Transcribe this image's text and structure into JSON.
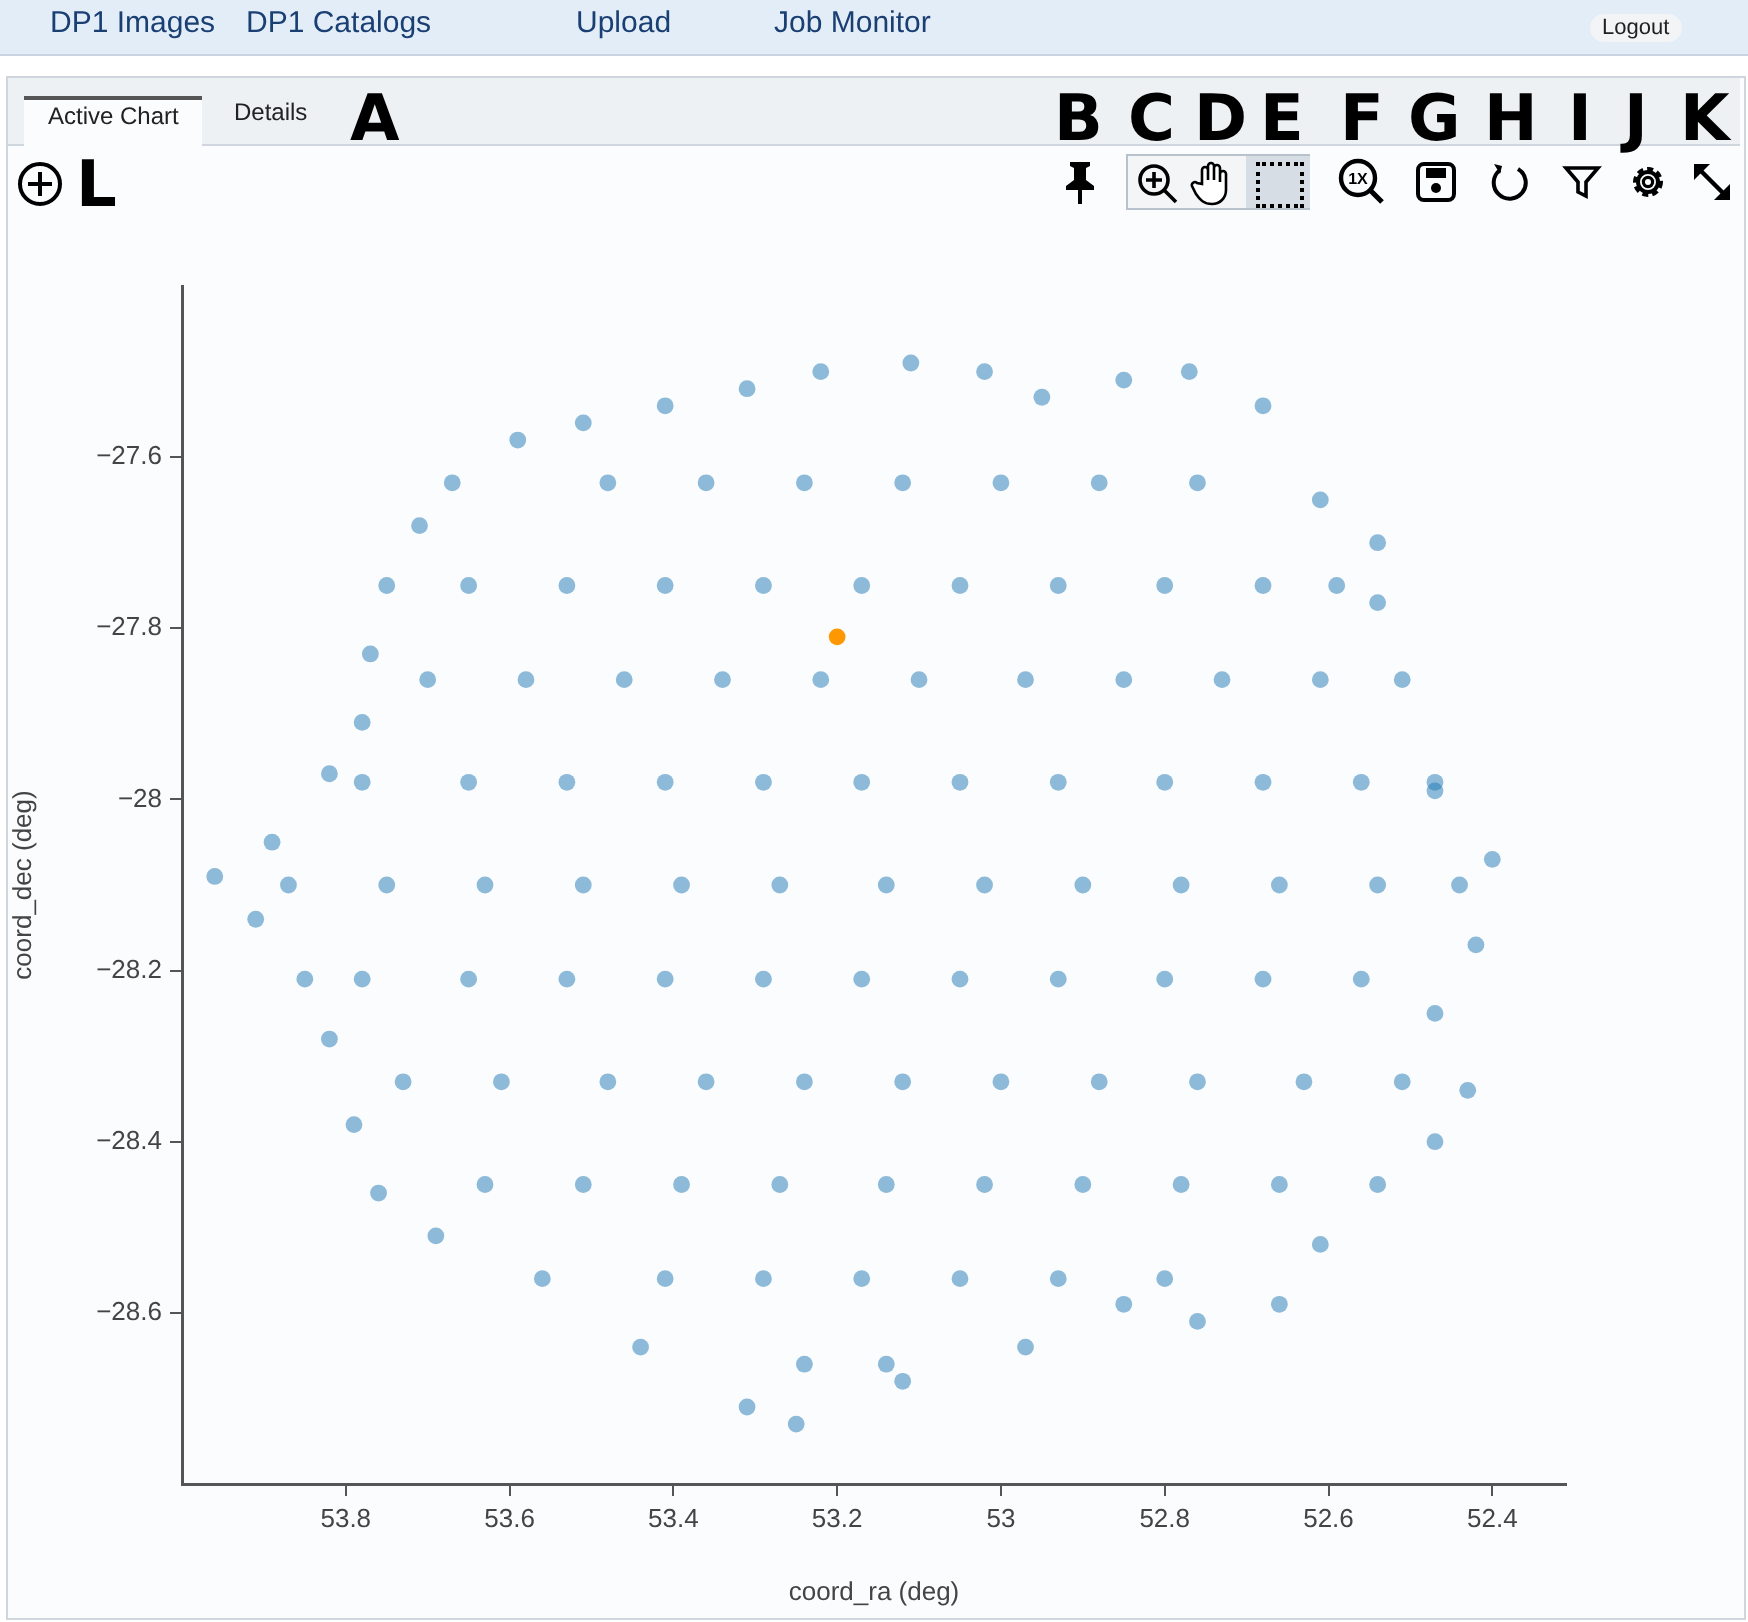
{
  "chart_data": {
    "type": "scatter",
    "xlabel": "coord_ra (deg)",
    "ylabel": "coord_dec (deg)",
    "xlim": [
      54.0,
      52.31
    ],
    "xticks": [
      53.8,
      53.6,
      53.4,
      53.2,
      53,
      52.8,
      52.6,
      52.4
    ],
    "ylim": [
      -28.8,
      -27.4
    ],
    "yticks": [
      {
        "value": -27.6,
        "label": "−27.6"
      },
      {
        "value": -27.8,
        "label": "−27.8"
      },
      {
        "value": -28,
        "label": "−28"
      },
      {
        "value": -28.2,
        "label": "−28.2"
      },
      {
        "value": -28.4,
        "label": "−28.4"
      },
      {
        "value": -28.6,
        "label": "−28.6"
      }
    ],
    "grid": false,
    "legend": false,
    "marker": "circle",
    "series": [
      {
        "color": "#1f77b4",
        "x": [
          53.11,
          53.22,
          53.31,
          53.41,
          53.51,
          53.59,
          53.67,
          53.71,
          53.75,
          53.77,
          53.78,
          53.82,
          53.89,
          53.96,
          53.91,
          53.85,
          53.82,
          53.79,
          53.76,
          53.69,
          53.56,
          53.44,
          53.31,
          53.25,
          53.12,
          52.97,
          52.85,
          52.76,
          52.66,
          52.61,
          52.54,
          52.47,
          52.43,
          52.47,
          52.42,
          52.4,
          52.47,
          52.51,
          52.54,
          52.54,
          52.61,
          52.68,
          52.77,
          52.85,
          52.95,
          53.02,
          53.48,
          53.36,
          53.24,
          53.12,
          53.0,
          52.88,
          52.76,
          53.65,
          53.53,
          53.41,
          53.29,
          53.17,
          53.05,
          52.93,
          52.8,
          52.68,
          52.59,
          53.7,
          53.58,
          53.46,
          53.34,
          53.22,
          53.1,
          52.97,
          52.85,
          52.73,
          52.61,
          53.78,
          53.65,
          53.53,
          53.41,
          53.29,
          53.17,
          53.05,
          52.93,
          52.8,
          52.68,
          52.56,
          52.47,
          53.87,
          53.75,
          53.63,
          53.51,
          53.39,
          53.27,
          53.14,
          53.02,
          52.9,
          52.78,
          52.66,
          52.54,
          52.44,
          53.78,
          53.65,
          53.53,
          53.41,
          53.29,
          53.17,
          53.05,
          52.93,
          52.8,
          52.68,
          52.56,
          53.73,
          53.61,
          53.48,
          53.36,
          53.24,
          53.12,
          53.0,
          52.88,
          52.76,
          52.63,
          52.51,
          53.63,
          53.51,
          53.39,
          53.27,
          53.14,
          53.02,
          52.9,
          52.78,
          52.66,
          53.41,
          53.29,
          53.17,
          53.05,
          52.93,
          52.8,
          53.24,
          53.14
        ],
        "values": [
          -27.49,
          -27.5,
          -27.52,
          -27.54,
          -27.56,
          -27.58,
          -27.63,
          -27.68,
          -27.75,
          -27.83,
          -27.91,
          -27.97,
          -28.05,
          -28.09,
          -28.14,
          -28.21,
          -28.28,
          -28.38,
          -28.46,
          -28.51,
          -28.56,
          -28.64,
          -28.71,
          -28.73,
          -28.68,
          -28.64,
          -28.59,
          -28.61,
          -28.59,
          -28.52,
          -28.45,
          -28.4,
          -28.34,
          -28.25,
          -28.17,
          -28.07,
          -27.99,
          -27.86,
          -27.77,
          -27.7,
          -27.65,
          -27.54,
          -27.5,
          -27.51,
          -27.53,
          -27.5,
          -27.63,
          -27.63,
          -27.63,
          -27.63,
          -27.63,
          -27.63,
          -27.63,
          -27.75,
          -27.75,
          -27.75,
          -27.75,
          -27.75,
          -27.75,
          -27.75,
          -27.75,
          -27.75,
          -27.75,
          -27.86,
          -27.86,
          -27.86,
          -27.86,
          -27.86,
          -27.86,
          -27.86,
          -27.86,
          -27.86,
          -27.86,
          -27.98,
          -27.98,
          -27.98,
          -27.98,
          -27.98,
          -27.98,
          -27.98,
          -27.98,
          -27.98,
          -27.98,
          -27.98,
          -27.98,
          -28.1,
          -28.1,
          -28.1,
          -28.1,
          -28.1,
          -28.1,
          -28.1,
          -28.1,
          -28.1,
          -28.1,
          -28.1,
          -28.1,
          -28.1,
          -28.21,
          -28.21,
          -28.21,
          -28.21,
          -28.21,
          -28.21,
          -28.21,
          -28.21,
          -28.21,
          -28.21,
          -28.21,
          -28.33,
          -28.33,
          -28.33,
          -28.33,
          -28.33,
          -28.33,
          -28.33,
          -28.33,
          -28.33,
          -28.33,
          -28.33,
          -28.45,
          -28.45,
          -28.45,
          -28.45,
          -28.45,
          -28.45,
          -28.45,
          -28.45,
          -28.45,
          -28.56,
          -28.56,
          -28.56,
          -28.56,
          -28.56,
          -28.56,
          -28.66,
          -28.66
        ]
      },
      {
        "color": "#ff9800",
        "x": [
          53.2
        ],
        "values": [
          -27.81
        ]
      }
    ],
    "annotations": [
      "DP1 Images",
      "DP1 Catalogs",
      "Upload",
      "Job Monitor",
      "Logout",
      "Active Chart",
      "Details",
      "A",
      "B",
      "C",
      "D",
      "E",
      "F",
      "G",
      "H",
      "I",
      "J",
      "K",
      "L",
      "1X"
    ]
  }
}
